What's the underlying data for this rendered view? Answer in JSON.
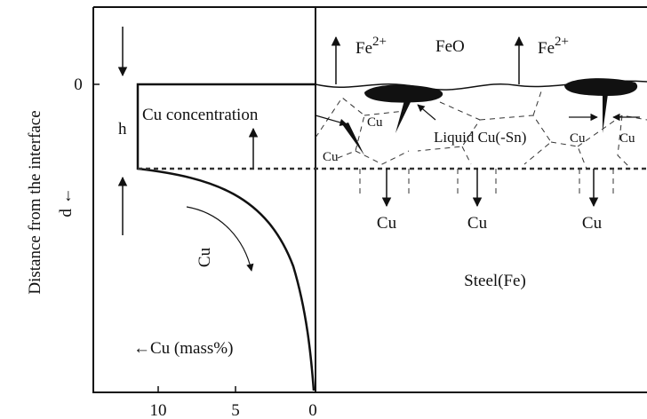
{
  "left_panel": {
    "y_axis_label": "Distance from the interface",
    "y_axis_symbol": "d ←",
    "y_tick": "0",
    "x_ticks": [
      "10",
      "5",
      "0"
    ],
    "x_axis_label": "←Cu (mass%)",
    "h_label": "h",
    "concentration_label": "Cu concentration",
    "curve_label": "Cu"
  },
  "right_panel": {
    "ions": [
      {
        "base": "Fe",
        "sup": "2+"
      },
      {
        "base": "Fe",
        "sup": "2+"
      }
    ],
    "oxide": "FeO",
    "liquid_label": "Liquid Cu(-Sn)",
    "small_labels": [
      "Cu",
      "Cu",
      "Cu",
      "Cu"
    ],
    "diffusion_labels": [
      "Cu",
      "Cu",
      "Cu"
    ],
    "steel_label": "Steel(Fe)"
  }
}
